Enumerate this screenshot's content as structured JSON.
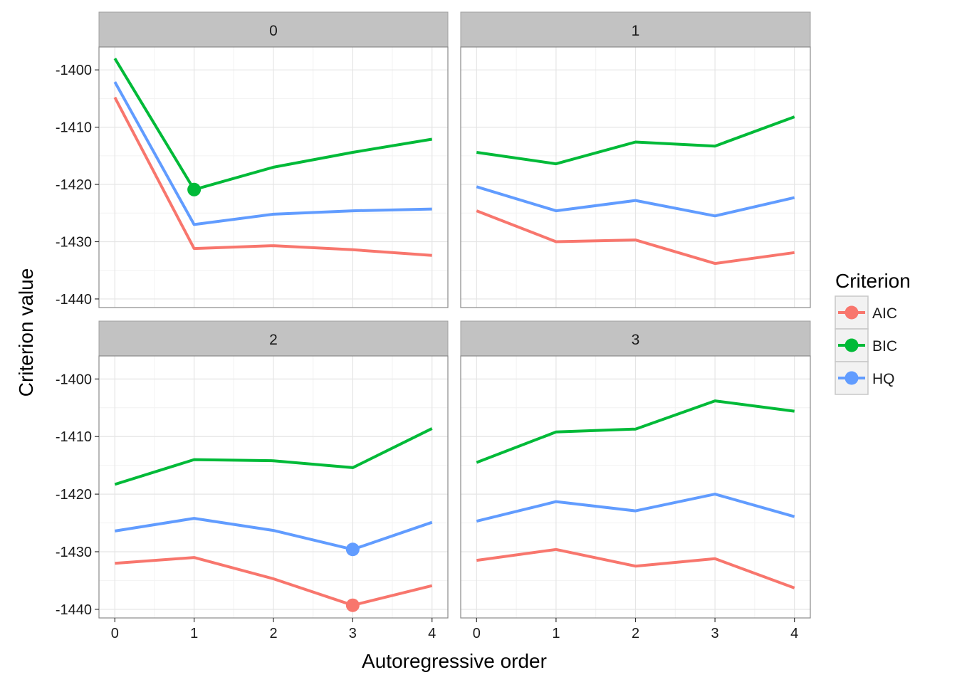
{
  "chart_data": {
    "type": "line",
    "xlabel": "Autoregressive order",
    "ylabel": "Criterion value",
    "x": [
      0,
      1,
      2,
      3,
      4
    ],
    "x_ticks": [
      "0",
      "1",
      "2",
      "3",
      "4"
    ],
    "y_ticks": [
      -1400,
      -1410,
      -1420,
      -1430,
      -1440
    ],
    "y_tick_labels": [
      "-1400",
      "-1410",
      "-1420",
      "-1430",
      "-1440"
    ],
    "xlim": [
      -0.2,
      4.2
    ],
    "ylim": [
      -1441.5,
      -1396
    ],
    "grid": true,
    "legend": {
      "title": "Criterion",
      "position": "right",
      "entries": [
        "AIC",
        "BIC",
        "HQ"
      ]
    },
    "colors": {
      "AIC": "#F8766D",
      "BIC": "#00BA38",
      "HQ": "#619CFF"
    },
    "panels": [
      {
        "label": "0",
        "series": [
          {
            "name": "AIC",
            "values": [
              -1404.8,
              -1431.2,
              -1430.7,
              -1431.4,
              -1432.4
            ]
          },
          {
            "name": "BIC",
            "values": [
              -1398.0,
              -1420.9,
              -1417.0,
              -1414.4,
              -1412.1
            ]
          },
          {
            "name": "HQ",
            "values": [
              -1402.1,
              -1427.0,
              -1425.2,
              -1424.6,
              -1424.3
            ]
          }
        ],
        "highlights": [
          {
            "series": "BIC",
            "x": 1,
            "y": -1420.9
          }
        ]
      },
      {
        "label": "1",
        "series": [
          {
            "name": "AIC",
            "values": [
              -1424.6,
              -1430.0,
              -1429.7,
              -1433.8,
              -1431.9
            ]
          },
          {
            "name": "BIC",
            "values": [
              -1414.4,
              -1416.4,
              -1412.6,
              -1413.3,
              -1408.2
            ]
          },
          {
            "name": "HQ",
            "values": [
              -1420.4,
              -1424.6,
              -1422.8,
              -1425.5,
              -1422.3
            ]
          }
        ],
        "highlights": []
      },
      {
        "label": "2",
        "series": [
          {
            "name": "AIC",
            "values": [
              -1432.0,
              -1431.0,
              -1434.7,
              -1439.3,
              -1435.9
            ]
          },
          {
            "name": "BIC",
            "values": [
              -1418.3,
              -1414.0,
              -1414.2,
              -1415.4,
              -1408.6
            ]
          },
          {
            "name": "HQ",
            "values": [
              -1426.4,
              -1424.2,
              -1426.3,
              -1429.6,
              -1424.9
            ]
          }
        ],
        "highlights": [
          {
            "series": "HQ",
            "x": 3,
            "y": -1429.6
          },
          {
            "series": "AIC",
            "x": 3,
            "y": -1439.3
          }
        ]
      },
      {
        "label": "3",
        "series": [
          {
            "name": "AIC",
            "values": [
              -1431.5,
              -1429.6,
              -1432.5,
              -1431.2,
              -1436.3
            ]
          },
          {
            "name": "BIC",
            "values": [
              -1414.5,
              -1409.2,
              -1408.7,
              -1403.8,
              -1405.6
            ]
          },
          {
            "name": "HQ",
            "values": [
              -1424.7,
              -1421.3,
              -1422.9,
              -1420.0,
              -1423.9
            ]
          }
        ],
        "highlights": []
      }
    ]
  }
}
